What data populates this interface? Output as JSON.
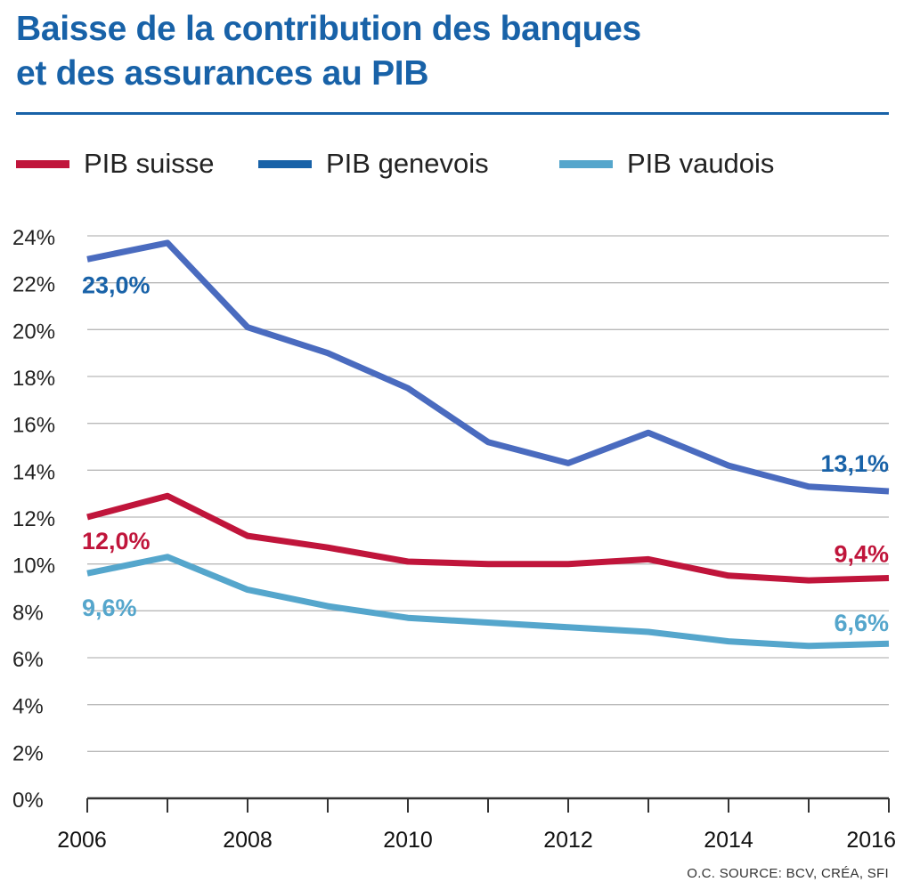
{
  "chart_data": {
    "type": "line",
    "title": "Baisse de la contribution des banques et des assurances au PIB",
    "title_lines": [
      "Baisse de la contribution des banques",
      "et des assurances au PIB"
    ],
    "xlabel": "",
    "ylabel": "",
    "x": [
      2006,
      2007,
      2008,
      2009,
      2010,
      2011,
      2012,
      2013,
      2014,
      2015,
      2016
    ],
    "x_tick_labels": [
      "2006",
      "2008",
      "2010",
      "2012",
      "2014",
      "2016"
    ],
    "xlim": [
      2006,
      2016
    ],
    "ylim": [
      0,
      24
    ],
    "y_ticks": [
      0,
      2,
      4,
      6,
      8,
      10,
      12,
      14,
      16,
      18,
      20,
      22,
      24
    ],
    "y_tick_labels": [
      "0%",
      "2%",
      "4%",
      "6%",
      "8%",
      "10%",
      "12%",
      "14%",
      "16%",
      "18%",
      "20%",
      "22%",
      "24%"
    ],
    "grid": true,
    "legend_position": "top",
    "series": [
      {
        "name": "PIB suisse",
        "color": "#c0153b",
        "values": [
          12.0,
          12.9,
          11.2,
          10.7,
          10.1,
          10.0,
          10.0,
          10.2,
          9.5,
          9.3,
          9.4
        ],
        "start_label": "12,0%",
        "end_label": "9,4%"
      },
      {
        "name": "PIB genevois",
        "color": "#4a6bbf",
        "label_color": "#1862a8",
        "legend_color": "#1862a8",
        "values": [
          23.0,
          23.7,
          20.1,
          19.0,
          17.5,
          15.2,
          14.3,
          15.6,
          14.2,
          13.3,
          13.1
        ],
        "start_label": "23,0%",
        "end_label": "13,1%"
      },
      {
        "name": "PIB vaudois",
        "color": "#55a6cc",
        "values": [
          9.6,
          10.3,
          8.9,
          8.2,
          7.7,
          7.5,
          7.3,
          7.1,
          6.7,
          6.5,
          6.6
        ],
        "start_label": "9,6%",
        "end_label": "6,6%"
      }
    ],
    "source": "O.C. SOURCE: BCV, CRÉA, SFI"
  }
}
